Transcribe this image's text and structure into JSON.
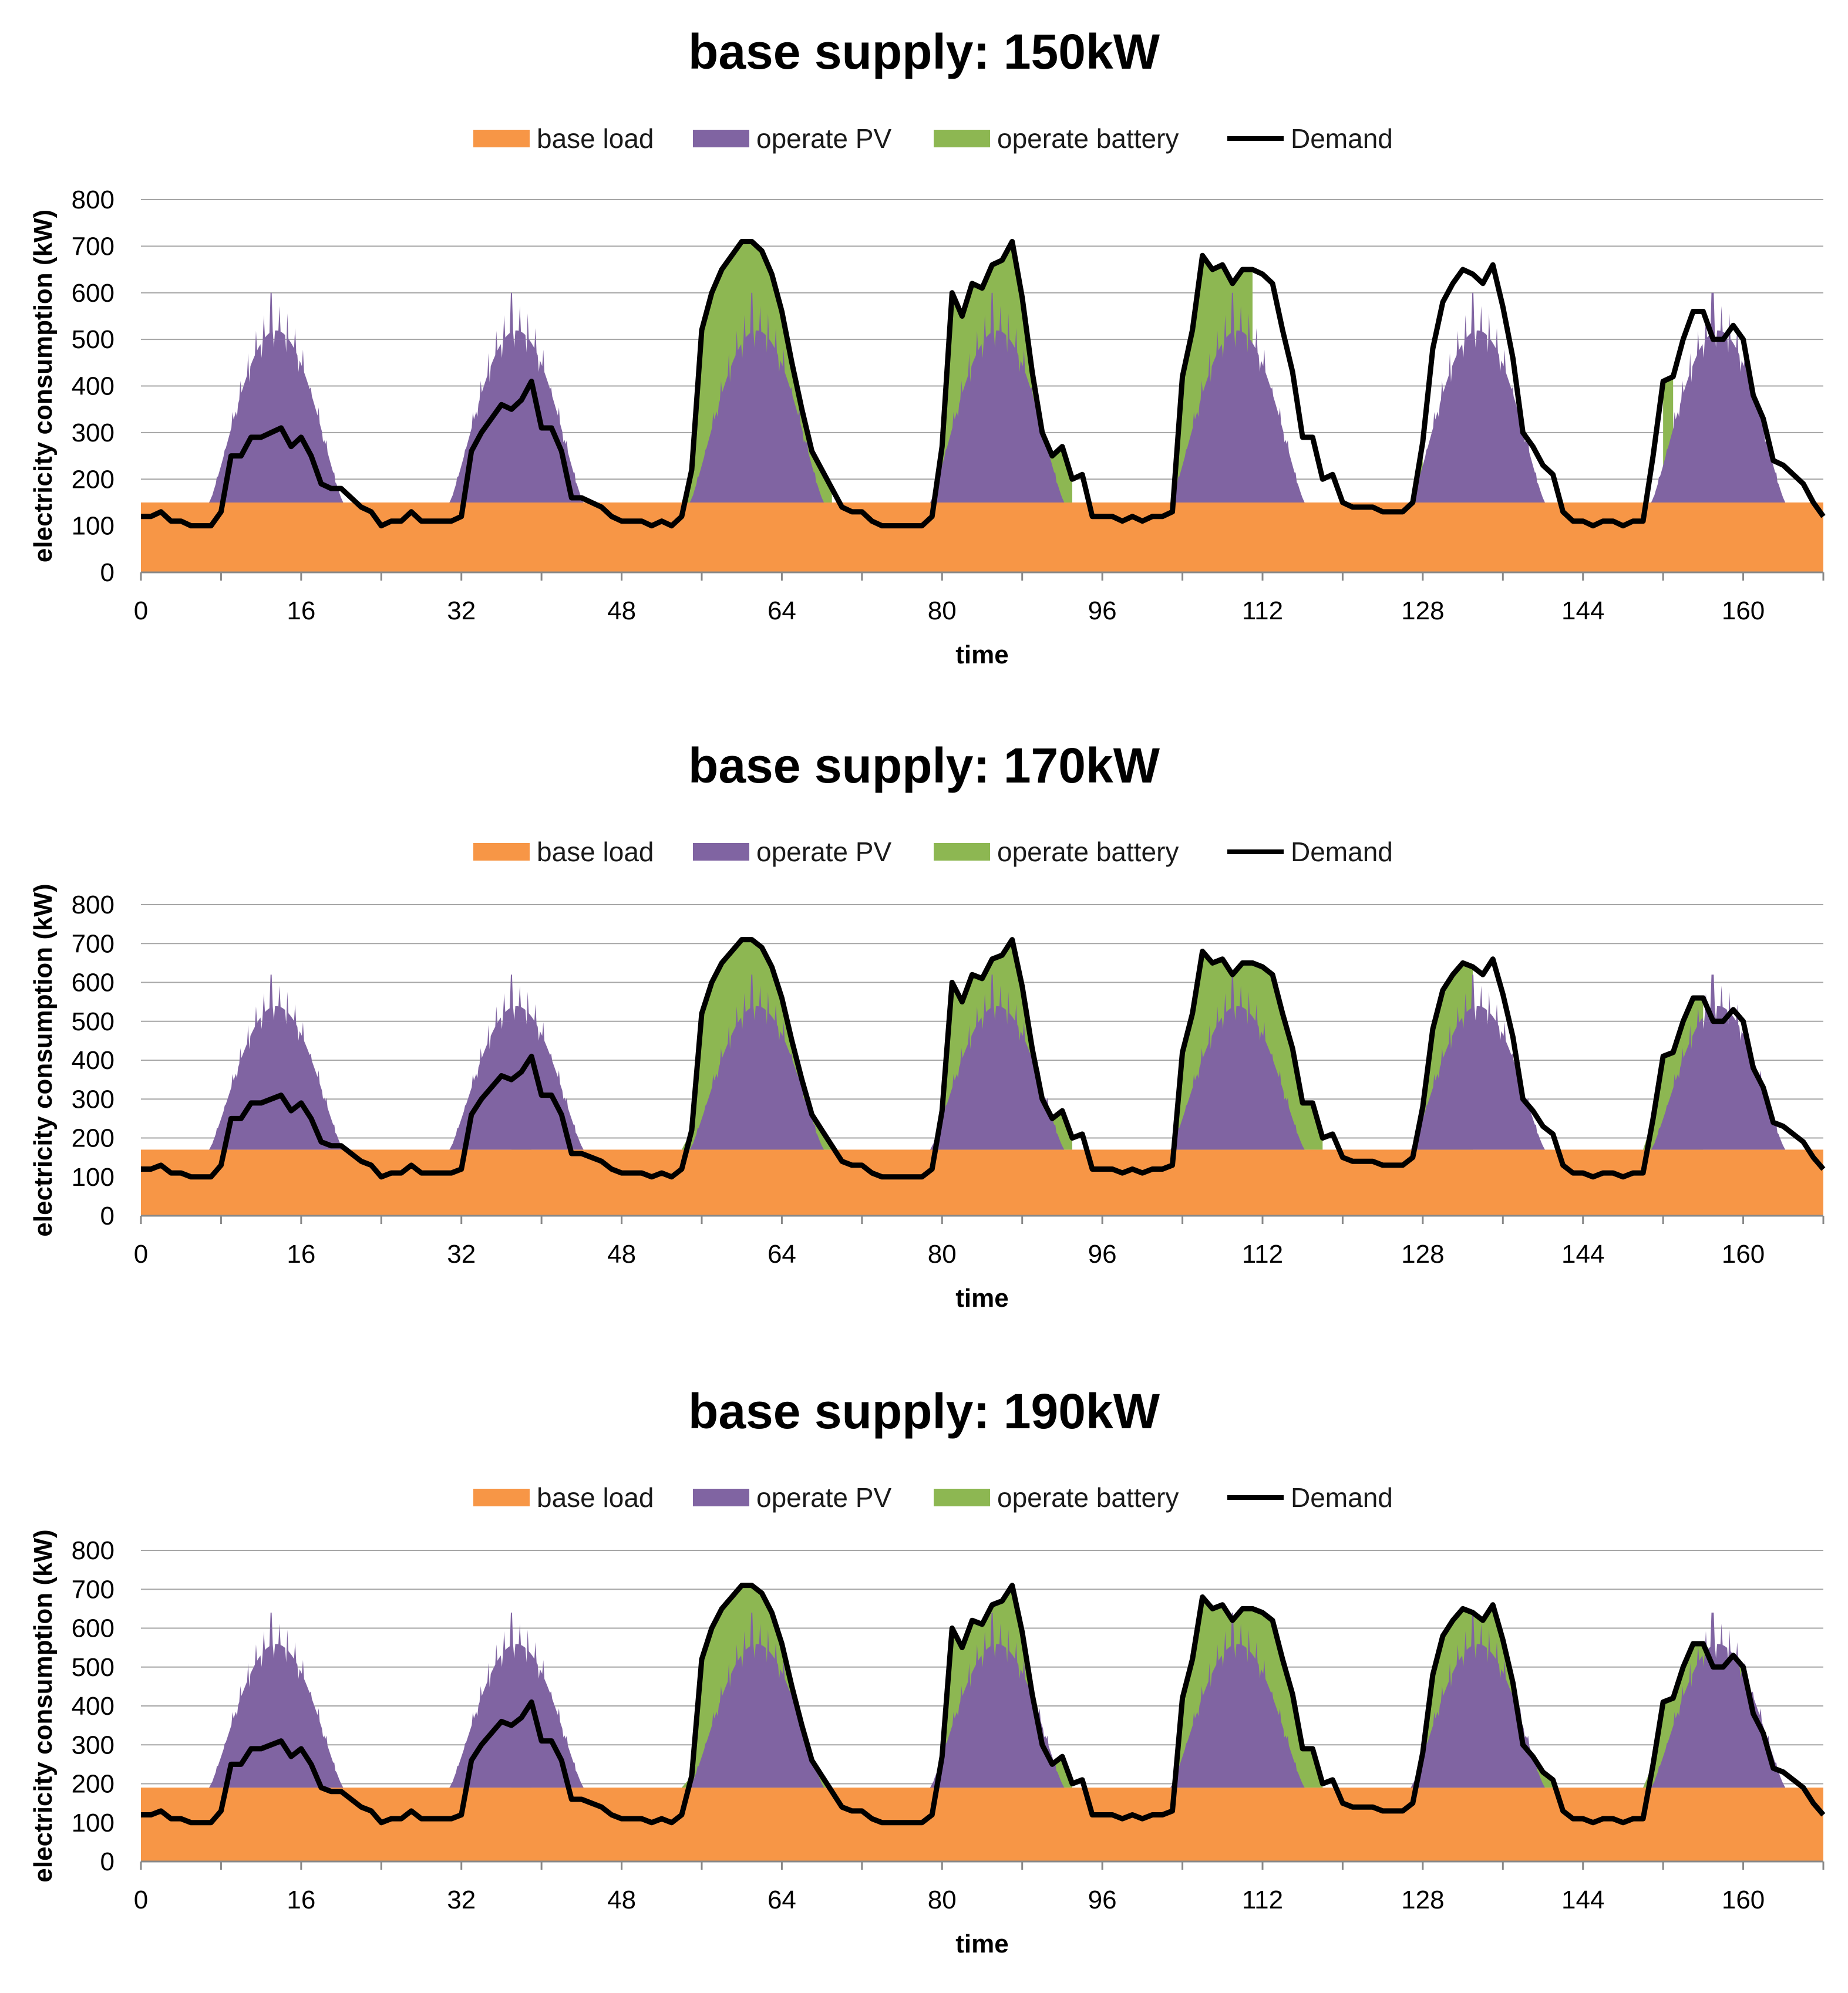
{
  "legend": {
    "base_load": "base load",
    "operate_pv": "operate PV",
    "operate_battery": "operate battery",
    "demand": "Demand"
  },
  "colors": {
    "base_load": "#F79646",
    "operate_pv": "#8064A2",
    "operate_battery": "#8DB752",
    "demand": "#000000",
    "grid": "#A6A6A6"
  },
  "chart_data": [
    {
      "type": "area",
      "title": "base supply: 150kW",
      "xlabel": "time",
      "ylabel": "electricity consumption (kW)",
      "base_supply": 150,
      "xlim": [
        0,
        168
      ],
      "ylim": [
        0,
        800
      ],
      "xticks": [
        0,
        16,
        32,
        48,
        64,
        80,
        96,
        112,
        128,
        144,
        160
      ],
      "yticks": [
        0,
        100,
        200,
        300,
        400,
        500,
        600,
        700,
        800
      ],
      "pv_peaks": [
        600,
        600,
        600,
        600,
        600,
        600,
        600
      ],
      "battery_windows": [
        [
          18.6,
          19.6
        ],
        [
          37,
          39
        ],
        [
          54,
          69
        ],
        [
          79,
          93
        ],
        [
          102,
          111
        ],
        [
          127,
          128
        ],
        [
          152,
          153
        ]
      ]
    },
    {
      "type": "area",
      "title": "base supply: 170kW",
      "xlabel": "time",
      "ylabel": "electricity consumption (kW)",
      "base_supply": 170,
      "xlim": [
        0,
        168
      ],
      "ylim": [
        0,
        800
      ],
      "xticks": [
        0,
        16,
        32,
        48,
        64,
        80,
        96,
        112,
        128,
        144,
        160
      ],
      "yticks": [
        0,
        100,
        200,
        300,
        400,
        500,
        600,
        700,
        800
      ],
      "pv_peaks": [
        620,
        620,
        620,
        620,
        620,
        620,
        620
      ],
      "battery_windows": [
        [
          18.6,
          19.6
        ],
        [
          37,
          39
        ],
        [
          54,
          69
        ],
        [
          79,
          93
        ],
        [
          102,
          118
        ],
        [
          127,
          133
        ],
        [
          150,
          156
        ]
      ]
    },
    {
      "type": "area",
      "title": "base supply: 190kW",
      "xlabel": "time",
      "ylabel": "electricity consumption (kW)",
      "base_supply": 190,
      "xlim": [
        0,
        168
      ],
      "ylim": [
        0,
        800
      ],
      "xticks": [
        0,
        16,
        32,
        48,
        64,
        80,
        96,
        112,
        128,
        144,
        160
      ],
      "yticks": [
        0,
        100,
        200,
        300,
        400,
        500,
        600,
        700,
        800
      ],
      "pv_peaks": [
        640,
        640,
        640,
        640,
        640,
        640,
        640
      ],
      "battery_windows": [
        [
          18.6,
          19.6
        ],
        [
          37,
          39
        ],
        [
          54,
          69
        ],
        [
          79,
          93
        ],
        [
          102,
          118
        ],
        [
          127,
          141
        ],
        [
          150,
          163
        ]
      ]
    }
  ],
  "demand_series": {
    "x": [
      0,
      1,
      2,
      3,
      4,
      5,
      6,
      7,
      8,
      9,
      10,
      11,
      12,
      13,
      14,
      15,
      16,
      17,
      18,
      19,
      20,
      21,
      22,
      23,
      24,
      25,
      26,
      27,
      28,
      29,
      30,
      31,
      32,
      33,
      34,
      35,
      36,
      37,
      38,
      39,
      40,
      41,
      42,
      43,
      44,
      45,
      46,
      47,
      48,
      49,
      50,
      51,
      52,
      53,
      54,
      55,
      56,
      57,
      58,
      59,
      60,
      61,
      62,
      63,
      64,
      65,
      66,
      67,
      68,
      69,
      70,
      71,
      72,
      73,
      74,
      75,
      76,
      77,
      78,
      79,
      80,
      81,
      82,
      83,
      84,
      85,
      86,
      87,
      88,
      89,
      90,
      91,
      92,
      93,
      94,
      95,
      96,
      97,
      98,
      99,
      100,
      101,
      102,
      103,
      104,
      105,
      106,
      107,
      108,
      109,
      110,
      111,
      112,
      113,
      114,
      115,
      116,
      117,
      118,
      119,
      120,
      121,
      122,
      123,
      124,
      125,
      126,
      127,
      128,
      129,
      130,
      131,
      132,
      133,
      134,
      135,
      136,
      137,
      138,
      139,
      140,
      141,
      142,
      143,
      144,
      145,
      146,
      147,
      148,
      149,
      150,
      151,
      152,
      153,
      154,
      155,
      156,
      157,
      158,
      159,
      160,
      161,
      162,
      163,
      164,
      165,
      166,
      167,
      168
    ],
    "y": [
      120,
      120,
      130,
      110,
      110,
      100,
      100,
      100,
      130,
      250,
      250,
      290,
      290,
      300,
      310,
      270,
      290,
      250,
      190,
      180,
      180,
      160,
      140,
      130,
      100,
      110,
      110,
      130,
      110,
      110,
      110,
      110,
      120,
      260,
      300,
      330,
      360,
      350,
      370,
      410,
      310,
      310,
      260,
      160,
      160,
      150,
      140,
      120,
      110,
      110,
      110,
      100,
      110,
      100,
      120,
      220,
      520,
      600,
      650,
      680,
      710,
      710,
      690,
      640,
      560,
      450,
      350,
      260,
      220,
      180,
      140,
      130,
      130,
      110,
      100,
      100,
      100,
      100,
      100,
      120,
      270,
      600,
      550,
      620,
      610,
      660,
      670,
      710,
      590,
      430,
      300,
      250,
      270,
      200,
      210,
      120,
      120,
      120,
      110,
      120,
      110,
      120,
      120,
      130,
      420,
      520,
      680,
      650,
      660,
      620,
      650,
      650,
      640,
      620,
      520,
      430,
      290,
      290,
      200,
      210,
      150,
      140,
      140,
      140,
      130,
      130,
      130,
      150,
      280,
      480,
      580,
      620,
      650,
      640,
      620,
      660,
      570,
      460,
      300,
      270,
      230,
      210,
      130,
      110,
      110,
      100,
      110,
      110,
      100,
      110,
      110,
      250,
      410,
      420,
      500,
      560,
      560,
      500,
      500,
      530,
      500,
      380,
      330,
      240,
      230,
      210,
      190,
      150,
      120
    ]
  }
}
